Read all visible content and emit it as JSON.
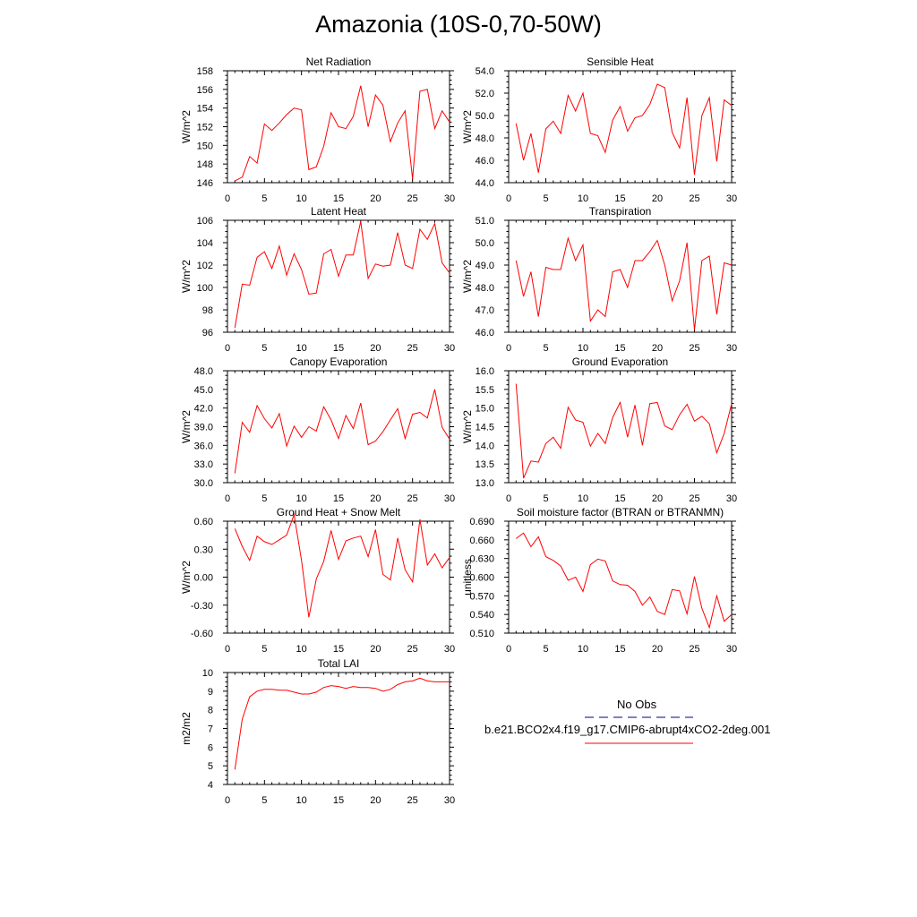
{
  "title": "Amazonia (10S-0,70-50W)",
  "legend": {
    "entries": [
      {
        "label": "No Obs",
        "color": "#00008b",
        "style": "dashed"
      },
      {
        "label": "b.e21.BCO2x4.f19_g17.CMIP6-abrupt4xCO2-2deg.001",
        "color": "#ff0000",
        "style": "solid"
      }
    ]
  },
  "chart_data": [
    {
      "type": "line",
      "title": "Net Radiation",
      "xlabel": "",
      "ylabel": "W/m^2",
      "xlim": [
        0,
        30
      ],
      "ylim": [
        146,
        158
      ],
      "xticks": [
        0,
        5,
        10,
        15,
        20,
        25,
        30
      ],
      "yticks": [
        146,
        148,
        150,
        152,
        154,
        156,
        158
      ],
      "ytick_labels": [
        "146",
        "148",
        "150",
        "152",
        "154",
        "156",
        "158"
      ],
      "color": "#ff0000",
      "x": [
        1,
        2,
        3,
        4,
        5,
        6,
        7,
        8,
        9,
        10,
        11,
        12,
        13,
        14,
        15,
        16,
        17,
        18,
        19,
        20,
        21,
        22,
        23,
        24,
        25,
        26,
        27,
        28,
        29,
        30
      ],
      "y": [
        146.2,
        146.6,
        148.8,
        148.1,
        152.3,
        151.6,
        152.4,
        153.3,
        154.0,
        153.8,
        147.4,
        147.7,
        149.9,
        153.5,
        152.0,
        151.8,
        153.1,
        156.4,
        152.0,
        155.4,
        154.3,
        150.4,
        152.4,
        153.7,
        146.4,
        155.8,
        156.0,
        151.8,
        153.7,
        152.5
      ],
      "grid": false,
      "legend": false
    },
    {
      "type": "line",
      "title": "Sensible Heat",
      "xlabel": "",
      "ylabel": "W/m^2",
      "xlim": [
        0,
        30
      ],
      "ylim": [
        44,
        54
      ],
      "xticks": [
        0,
        5,
        10,
        15,
        20,
        25,
        30
      ],
      "yticks": [
        44,
        46,
        48,
        50,
        52,
        54
      ],
      "ytick_labels": [
        "44.0",
        "46.0",
        "48.0",
        "50.0",
        "52.0",
        "54.0"
      ],
      "color": "#ff0000",
      "x": [
        1,
        2,
        3,
        4,
        5,
        6,
        7,
        8,
        9,
        10,
        11,
        12,
        13,
        14,
        15,
        16,
        17,
        18,
        19,
        20,
        21,
        22,
        23,
        24,
        25,
        26,
        27,
        28,
        29,
        30
      ],
      "y": [
        49.3,
        46.0,
        48.4,
        44.9,
        48.8,
        49.5,
        48.4,
        51.8,
        50.4,
        52.0,
        48.4,
        48.2,
        46.7,
        49.6,
        50.8,
        48.6,
        49.8,
        50.0,
        51.0,
        52.8,
        52.5,
        48.5,
        47.1,
        51.6,
        44.7,
        50.0,
        51.6,
        45.9,
        51.4,
        50.9
      ],
      "grid": false,
      "legend": false
    },
    {
      "type": "line",
      "title": "Latent Heat",
      "xlabel": "",
      "ylabel": "W/m^2",
      "xlim": [
        0,
        30
      ],
      "ylim": [
        96,
        106
      ],
      "xticks": [
        0,
        5,
        10,
        15,
        20,
        25,
        30
      ],
      "yticks": [
        96,
        98,
        100,
        102,
        104,
        106
      ],
      "ytick_labels": [
        "96",
        "98",
        "100",
        "102",
        "104",
        "106"
      ],
      "color": "#ff0000",
      "x": [
        1,
        2,
        3,
        4,
        5,
        6,
        7,
        8,
        9,
        10,
        11,
        12,
        13,
        14,
        15,
        16,
        17,
        18,
        19,
        20,
        21,
        22,
        23,
        24,
        25,
        26,
        27,
        28,
        29,
        30
      ],
      "y": [
        96.4,
        100.3,
        100.2,
        102.7,
        103.2,
        101.7,
        103.7,
        101.1,
        103.0,
        101.6,
        99.4,
        99.5,
        103.0,
        103.4,
        101.0,
        102.9,
        102.9,
        105.9,
        100.8,
        102.1,
        101.9,
        102.0,
        104.9,
        102.0,
        101.7,
        105.2,
        104.3,
        105.7,
        102.2,
        101.3
      ],
      "grid": false,
      "legend": false
    },
    {
      "type": "line",
      "title": "Transpiration",
      "xlabel": "",
      "ylabel": "W/m^2",
      "xlim": [
        0,
        30
      ],
      "ylim": [
        46,
        51
      ],
      "xticks": [
        0,
        5,
        10,
        15,
        20,
        25,
        30
      ],
      "yticks": [
        46,
        47,
        48,
        49,
        50,
        51
      ],
      "ytick_labels": [
        "46.0",
        "47.0",
        "48.0",
        "49.0",
        "50.0",
        "51.0"
      ],
      "color": "#ff0000",
      "x": [
        1,
        2,
        3,
        4,
        5,
        6,
        7,
        8,
        9,
        10,
        11,
        12,
        13,
        14,
        15,
        16,
        17,
        18,
        19,
        20,
        21,
        22,
        23,
        24,
        25,
        26,
        27,
        28,
        29,
        30
      ],
      "y": [
        49.2,
        47.6,
        48.7,
        46.7,
        48.9,
        48.8,
        48.8,
        50.2,
        49.2,
        49.9,
        46.5,
        47.0,
        46.7,
        48.7,
        48.8,
        48.0,
        49.2,
        49.2,
        49.6,
        50.1,
        49.0,
        47.4,
        48.3,
        50.0,
        46.1,
        49.2,
        49.4,
        46.8,
        49.1,
        49.0
      ],
      "grid": false,
      "legend": false
    },
    {
      "type": "line",
      "title": "Canopy Evaporation",
      "xlabel": "",
      "ylabel": "W/m^2",
      "xlim": [
        0,
        30
      ],
      "ylim": [
        30,
        48
      ],
      "xticks": [
        0,
        5,
        10,
        15,
        20,
        25,
        30
      ],
      "yticks": [
        30,
        33,
        36,
        39,
        42,
        45,
        48
      ],
      "ytick_labels": [
        "30.0",
        "33.0",
        "36.0",
        "39.0",
        "42.0",
        "45.0",
        "48.0"
      ],
      "color": "#ff0000",
      "x": [
        1,
        2,
        3,
        4,
        5,
        6,
        7,
        8,
        9,
        10,
        11,
        12,
        13,
        14,
        15,
        16,
        17,
        18,
        19,
        20,
        21,
        22,
        23,
        24,
        25,
        26,
        27,
        28,
        29,
        30
      ],
      "y": [
        31.5,
        39.7,
        38.1,
        42.4,
        40.3,
        38.8,
        41.1,
        35.9,
        39.1,
        37.3,
        39.0,
        38.3,
        42.2,
        40.1,
        37.1,
        40.8,
        38.7,
        42.8,
        36.1,
        36.7,
        38.2,
        40.1,
        41.9,
        37.1,
        41.0,
        41.3,
        40.4,
        45.0,
        38.9,
        37.0
      ],
      "grid": false,
      "legend": false
    },
    {
      "type": "line",
      "title": "Ground Evaporation",
      "xlabel": "",
      "ylabel": "W/m^2",
      "xlim": [
        0,
        30
      ],
      "ylim": [
        13,
        16
      ],
      "xticks": [
        0,
        5,
        10,
        15,
        20,
        25,
        30
      ],
      "yticks": [
        13,
        13.5,
        14,
        14.5,
        15,
        15.5,
        16
      ],
      "ytick_labels": [
        "13.0",
        "13.5",
        "14.0",
        "14.5",
        "15.0",
        "15.5",
        "16.0"
      ],
      "color": "#ff0000",
      "x": [
        1,
        2,
        3,
        4,
        5,
        6,
        7,
        8,
        9,
        10,
        11,
        12,
        13,
        14,
        15,
        16,
        17,
        18,
        19,
        20,
        21,
        22,
        23,
        24,
        25,
        26,
        27,
        28,
        29,
        30
      ],
      "y": [
        15.65,
        13.12,
        13.58,
        13.55,
        14.05,
        14.22,
        13.92,
        15.02,
        14.68,
        14.62,
        13.98,
        14.32,
        14.05,
        14.75,
        15.15,
        14.22,
        15.08,
        14.0,
        15.12,
        15.15,
        14.52,
        14.42,
        14.82,
        15.1,
        14.65,
        14.78,
        14.58,
        13.8,
        14.32,
        15.12
      ],
      "grid": false,
      "legend": false
    },
    {
      "type": "line",
      "title": "Ground Heat + Snow Melt",
      "xlabel": "",
      "ylabel": "W/m^2",
      "xlim": [
        0,
        30
      ],
      "ylim": [
        -0.6,
        0.6
      ],
      "xticks": [
        0,
        5,
        10,
        15,
        20,
        25,
        30
      ],
      "yticks": [
        -0.6,
        -0.3,
        0,
        0.3,
        0.6
      ],
      "ytick_labels": [
        "-0.60",
        "-0.30",
        "0.00",
        "0.30",
        "0.60"
      ],
      "color": "#ff0000",
      "x": [
        1,
        2,
        3,
        4,
        5,
        6,
        7,
        8,
        9,
        10,
        11,
        12,
        13,
        14,
        15,
        16,
        17,
        18,
        19,
        20,
        21,
        22,
        23,
        24,
        25,
        26,
        27,
        28,
        29,
        30
      ],
      "y": [
        0.52,
        0.33,
        0.18,
        0.44,
        0.38,
        0.35,
        0.4,
        0.45,
        0.67,
        0.18,
        -0.43,
        -0.02,
        0.17,
        0.5,
        0.19,
        0.39,
        0.42,
        0.44,
        0.22,
        0.51,
        0.03,
        -0.03,
        0.42,
        0.08,
        -0.05,
        0.62,
        0.13,
        0.25,
        0.1,
        0.21
      ],
      "grid": false,
      "legend": false
    },
    {
      "type": "line",
      "title": "Soil moisture factor (BTRAN or BTRANMN)",
      "xlabel": "",
      "ylabel": "unitless",
      "xlim": [
        0,
        30
      ],
      "ylim": [
        0.51,
        0.69
      ],
      "xticks": [
        0,
        5,
        10,
        15,
        20,
        25,
        30
      ],
      "yticks": [
        0.51,
        0.54,
        0.57,
        0.6,
        0.63,
        0.66,
        0.69
      ],
      "ytick_labels": [
        "0.510",
        "0.540",
        "0.570",
        "0.600",
        "0.630",
        "0.660",
        "0.690"
      ],
      "color": "#ff0000",
      "x": [
        1,
        2,
        3,
        4,
        5,
        6,
        7,
        8,
        9,
        10,
        11,
        12,
        13,
        14,
        15,
        16,
        17,
        18,
        19,
        20,
        21,
        22,
        23,
        24,
        25,
        26,
        27,
        28,
        29,
        30
      ],
      "y": [
        0.662,
        0.671,
        0.649,
        0.665,
        0.633,
        0.627,
        0.618,
        0.595,
        0.6,
        0.577,
        0.62,
        0.629,
        0.626,
        0.594,
        0.588,
        0.587,
        0.577,
        0.555,
        0.568,
        0.545,
        0.54,
        0.58,
        0.578,
        0.541,
        0.601,
        0.55,
        0.519,
        0.57,
        0.529,
        0.54
      ],
      "grid": false,
      "legend": false
    },
    {
      "type": "line",
      "title": "Total LAI",
      "xlabel": "",
      "ylabel": "m2/m2",
      "xlim": [
        0,
        30
      ],
      "ylim": [
        4,
        10
      ],
      "xticks": [
        0,
        5,
        10,
        15,
        20,
        25,
        30
      ],
      "yticks": [
        4,
        5,
        6,
        7,
        8,
        9,
        10
      ],
      "ytick_labels": [
        "4",
        "5",
        "6",
        "7",
        "8",
        "9",
        "10"
      ],
      "color": "#ff0000",
      "x": [
        1,
        2,
        3,
        4,
        5,
        6,
        7,
        8,
        9,
        10,
        11,
        12,
        13,
        14,
        15,
        16,
        17,
        18,
        19,
        20,
        21,
        22,
        23,
        24,
        25,
        26,
        27,
        28,
        29,
        30
      ],
      "y": [
        4.8,
        7.5,
        8.7,
        9.0,
        9.1,
        9.1,
        9.05,
        9.05,
        8.95,
        8.85,
        8.85,
        8.95,
        9.2,
        9.3,
        9.25,
        9.15,
        9.25,
        9.2,
        9.2,
        9.15,
        9.0,
        9.1,
        9.35,
        9.5,
        9.55,
        9.7,
        9.55,
        9.5,
        9.5,
        9.5
      ],
      "grid": false,
      "legend": false
    }
  ]
}
